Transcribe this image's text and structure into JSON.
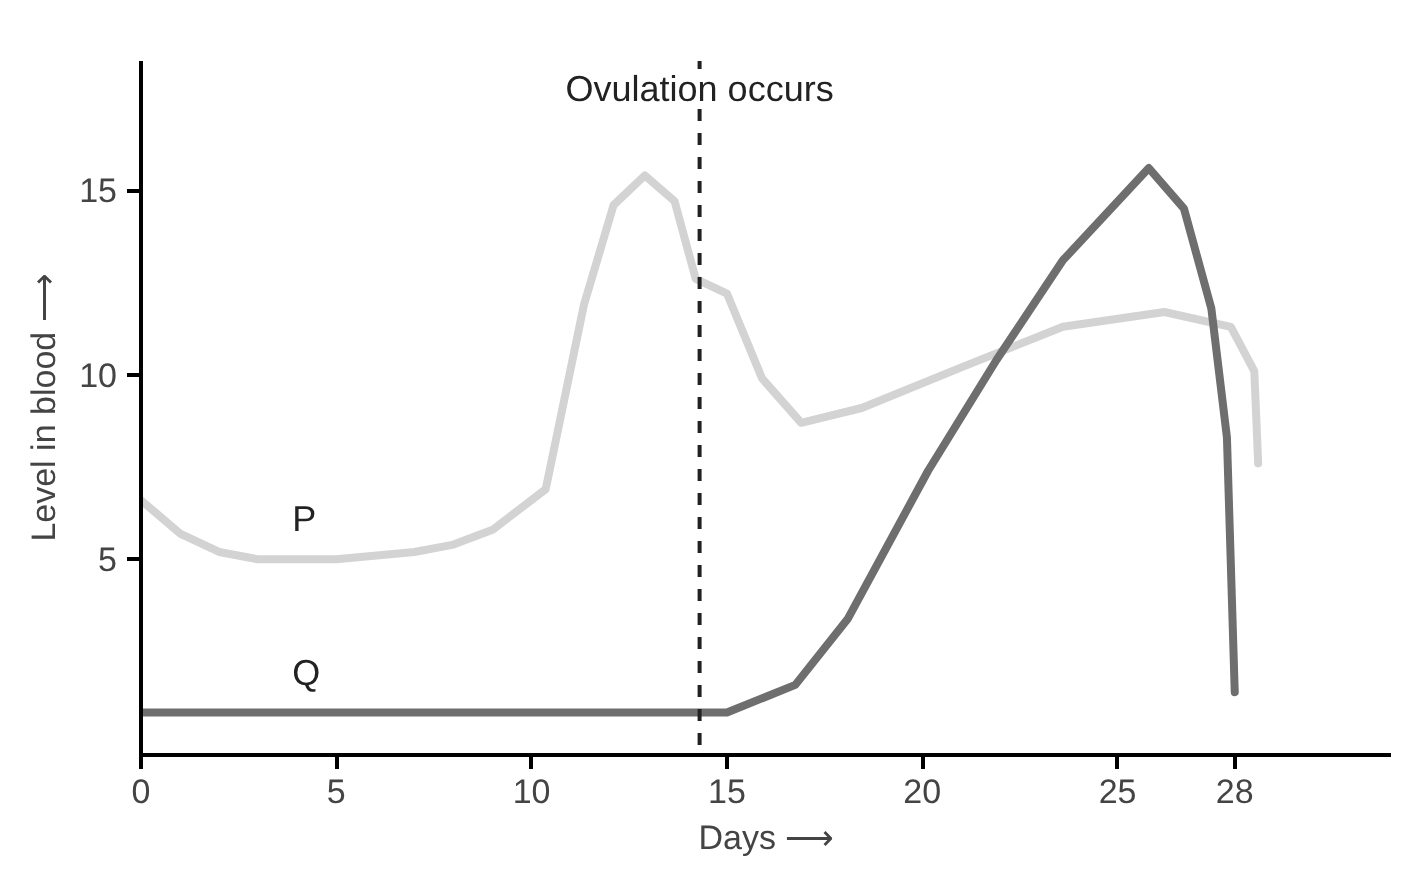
{
  "chart_data": {
    "type": "line",
    "xlabel": "Days ⟶",
    "ylabel": "Level in blood ⟶",
    "xlim": [
      0,
      32
    ],
    "ylim": [
      -0.3,
      18.5
    ],
    "xticks": [
      0,
      5,
      10,
      15,
      20,
      25,
      28
    ],
    "yticks": [
      5,
      10,
      15
    ],
    "grid": false,
    "legend": false,
    "line_style": "solid",
    "ref_lines": [
      {
        "axis": "x",
        "value": 14.3,
        "label": "Ovulation occurs",
        "color": "#222222",
        "line_style": "dashed"
      }
    ],
    "series": [
      {
        "name": "P",
        "color": "#d3d3d3",
        "x": [
          0,
          1,
          2,
          3,
          5,
          7,
          8,
          9,
          10.36,
          11.34,
          12.1,
          12.9,
          13.66,
          14.2,
          15,
          15.9,
          16.9,
          18.45,
          21,
          23.6,
          26.2,
          27.9,
          28.5,
          28.6
        ],
        "values": [
          6.6,
          5.7,
          5.2,
          5.0,
          5.0,
          5.2,
          5.4,
          5.8,
          6.9,
          11.9,
          14.6,
          15.4,
          14.7,
          12.6,
          12.2,
          9.9,
          8.7,
          9.1,
          10.2,
          11.3,
          11.7,
          11.3,
          10.1,
          7.6
        ]
      },
      {
        "name": "Q",
        "color": "#6e6e6e",
        "x": [
          0,
          5,
          10,
          14.5,
          15,
          16.75,
          18.1,
          20.15,
          21.9,
          23.6,
          25.8,
          26.7,
          27.4,
          27.8,
          28.0
        ],
        "values": [
          0.85,
          0.85,
          0.85,
          0.85,
          0.85,
          1.6,
          3.4,
          7.4,
          10.4,
          13.1,
          15.6,
          14.5,
          11.8,
          8.3,
          1.4
        ]
      }
    ]
  }
}
